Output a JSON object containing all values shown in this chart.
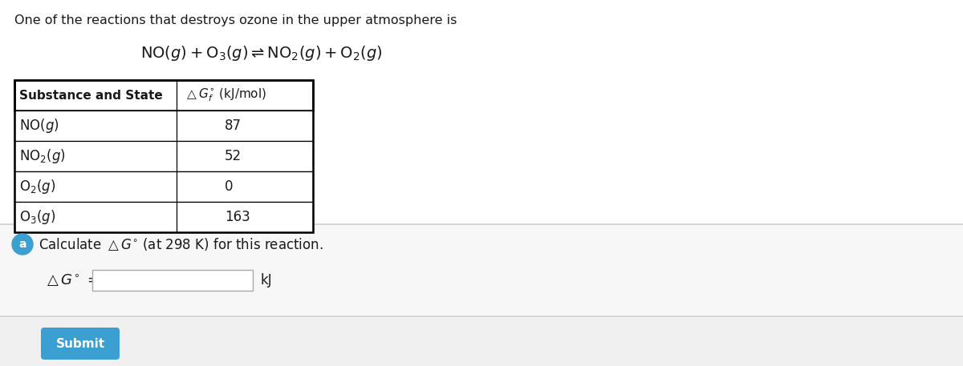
{
  "bg_color": "#ffffff",
  "top_text": "One of the reactions that destroys ozone in the upper atmosphere is",
  "table_header_col1": "Substance and State",
  "table_header_col2": "△Gₑ° (kJ/mol)",
  "row_substances_math": [
    "$\\mathrm{NO}(g)$",
    "$\\mathrm{NO_2}(g)$",
    "$\\mathrm{O_2}(g)$",
    "$\\mathrm{O_3}(g)$"
  ],
  "row_values": [
    "87",
    "52",
    "0",
    "163"
  ],
  "part_label": "a",
  "part_label_bg": "#3b9fd1",
  "answer_unit": "kJ",
  "submit_text": "Submit",
  "submit_bg": "#3b9fd1",
  "submit_text_color": "#ffffff",
  "divider_color": "#d0d0d0",
  "section_bg": "#f7f7f7",
  "bottom_bg": "#f0f0f0"
}
